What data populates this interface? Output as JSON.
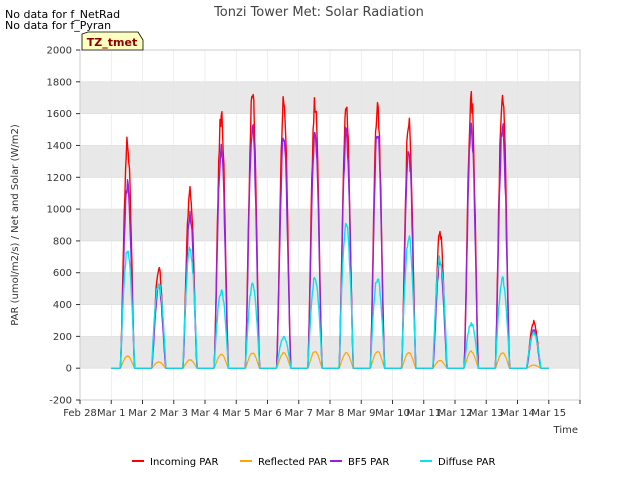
{
  "no_data": [
    "No data for f_NetRad",
    "No data for f_Pyran"
  ],
  "tz_label": "TZ_tmet",
  "colors": {
    "incoming": "#ff0000",
    "reflected": "#ffa500",
    "bf5": "#9a1fe0",
    "diffuse": "#00e5ee",
    "band": "#e8e8e8",
    "tz_bg": "#ffffc0"
  },
  "chart_data": {
    "type": "line",
    "title": "Tonzi Tower Met: Solar Radiation",
    "xlabel": "Time",
    "ylabel": "PAR (umol/m2/s) / Net and Solar (W/m2)",
    "xlim": [
      0,
      16
    ],
    "ylim": [
      -200,
      2000
    ],
    "x_tick_values": [
      0,
      1,
      2,
      3,
      4,
      5,
      6,
      7,
      8,
      9,
      10,
      11,
      12,
      13,
      14,
      15,
      16
    ],
    "x_tick_labels": [
      "Feb 28",
      "Mar 1",
      "Mar 2",
      "Mar 3",
      "Mar 4",
      "Mar 5",
      "Mar 6",
      "Mar 7",
      "Mar 8",
      "Mar 9",
      "Mar 10",
      "Mar 11",
      "Mar 12",
      "Mar 13",
      "Mar 14",
      "Mar 15",
      ""
    ],
    "y_ticks": [
      -200,
      0,
      200,
      400,
      600,
      800,
      1000,
      1200,
      1400,
      1600,
      1800,
      2000
    ],
    "days": [
      "Mar 1",
      "Mar 2",
      "Mar 3",
      "Mar 4",
      "Mar 5",
      "Mar 6",
      "Mar 7",
      "Mar 8",
      "Mar 9",
      "Mar 10",
      "Mar 11",
      "Mar 12",
      "Mar 13",
      "Mar 14"
    ],
    "series": [
      {
        "name": "Incoming PAR",
        "key": "incoming",
        "daily_peak": [
          1480,
          660,
          1160,
          1660,
          1800,
          1740,
          1750,
          1700,
          1700,
          1620,
          880,
          1770,
          1790,
          300
        ]
      },
      {
        "name": "Reflected PAR",
        "key": "reflected",
        "daily_peak": [
          80,
          40,
          55,
          90,
          100,
          100,
          110,
          100,
          110,
          100,
          50,
          110,
          100,
          20
        ]
      },
      {
        "name": "BF5 PAR",
        "key": "bf5",
        "daily_peak": [
          1200,
          530,
          1000,
          1440,
          1600,
          1520,
          1550,
          1540,
          1560,
          1420,
          700,
          1570,
          1580,
          250
        ]
      },
      {
        "name": "Diffuse PAR",
        "key": "diffuse",
        "daily_peak": [
          760,
          550,
          780,
          500,
          540,
          200,
          590,
          930,
          590,
          850,
          720,
          290,
          580,
          230
        ]
      }
    ]
  }
}
